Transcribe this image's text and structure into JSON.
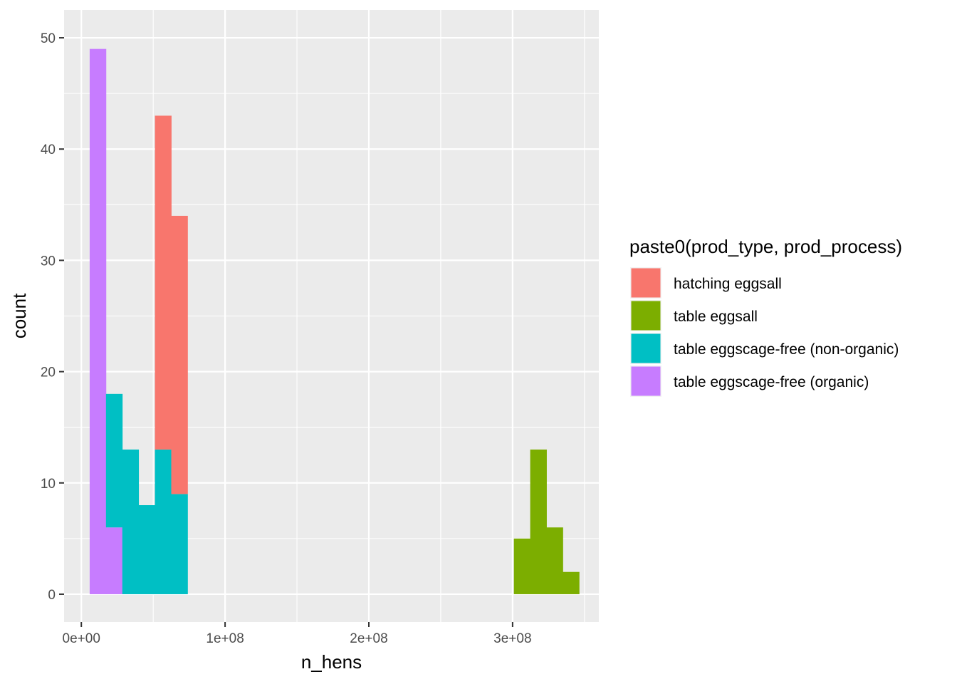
{
  "chart_data": {
    "type": "bar",
    "subtype": "stacked-histogram",
    "title": "",
    "xlabel": "n_hens",
    "ylabel": "count",
    "xlim": [
      -12000000,
      360000000
    ],
    "ylim": [
      -2.5,
      52.5
    ],
    "x_ticks": [
      {
        "value": 0,
        "label": "0e+00"
      },
      {
        "value": 100000000,
        "label": "1e+08"
      },
      {
        "value": 200000000,
        "label": "2e+08"
      },
      {
        "value": 300000000,
        "label": "3e+08"
      }
    ],
    "y_ticks": [
      {
        "value": 0,
        "label": "0"
      },
      {
        "value": 10,
        "label": "10"
      },
      {
        "value": 20,
        "label": "20"
      },
      {
        "value": 30,
        "label": "30"
      },
      {
        "value": 40,
        "label": "40"
      },
      {
        "value": 50,
        "label": "50"
      }
    ],
    "grid": true,
    "legend": {
      "title": "paste0(prod_type, prod_process)",
      "position": "right"
    },
    "bin_width": 11350000,
    "series": [
      {
        "name": "hatching eggsall",
        "color": "#F8766D",
        "bins": [
          {
            "x0": 51200000,
            "x1": 62550000,
            "value": 30
          },
          {
            "x0": 62550000,
            "x1": 73900000,
            "value": 25
          }
        ]
      },
      {
        "name": "table eggsall",
        "color": "#7CAE00",
        "bins": [
          {
            "x0": 300900000,
            "x1": 312250000,
            "value": 5
          },
          {
            "x0": 312250000,
            "x1": 323600000,
            "value": 13
          },
          {
            "x0": 323600000,
            "x1": 334950000,
            "value": 6
          },
          {
            "x0": 334950000,
            "x1": 346300000,
            "value": 2
          }
        ]
      },
      {
        "name": "table eggscage-free (non-organic)",
        "color": "#00BFC4",
        "bins": [
          {
            "x0": 17150000,
            "x1": 28500000,
            "value": 12
          },
          {
            "x0": 28500000,
            "x1": 39850000,
            "value": 13
          },
          {
            "x0": 39850000,
            "x1": 51200000,
            "value": 8
          },
          {
            "x0": 51200000,
            "x1": 62550000,
            "value": 13
          },
          {
            "x0": 62550000,
            "x1": 73900000,
            "value": 9
          }
        ]
      },
      {
        "name": "table eggscage-free (organic)",
        "color": "#C77CFF",
        "bins": [
          {
            "x0": 5800000,
            "x1": 17150000,
            "value": 49
          },
          {
            "x0": 17150000,
            "x1": 28500000,
            "value": 6
          }
        ]
      }
    ]
  }
}
